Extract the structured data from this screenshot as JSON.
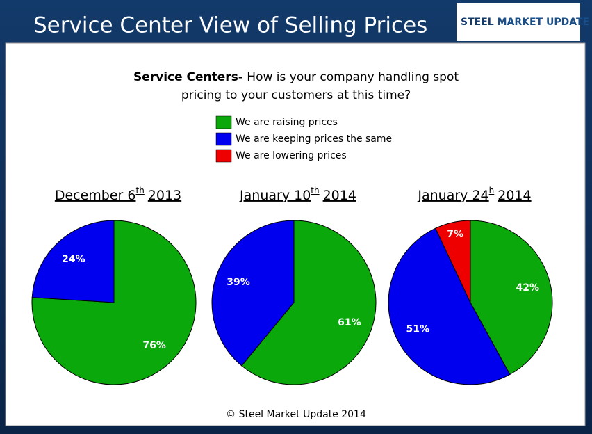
{
  "header": {
    "title": "Service Center View of Selling Prices",
    "logo_a": "STEEL",
    "logo_b": "MARKET UPDATE"
  },
  "question": {
    "lead": "Service Centers-",
    "line1": "How is your company handling spot",
    "line2": "pricing to your customers at this time?"
  },
  "legend": [
    {
      "name": "We are raising prices",
      "color": "#0aa80a"
    },
    {
      "name": "We are keeping prices the same",
      "color": "#0000ee"
    },
    {
      "name": "We are lowering prices",
      "color": "#ee0000"
    }
  ],
  "chart_data": [
    {
      "type": "pie",
      "title": {
        "main": "December 6",
        "sup": "th",
        "year": "2013"
      },
      "values": [
        76,
        24
      ],
      "value_labels": [
        "76%",
        "24%"
      ],
      "colors": [
        "#0aa80a",
        "#0000ee"
      ]
    },
    {
      "type": "pie",
      "title": {
        "main": "January 10",
        "sup": "th",
        "year": "2014"
      },
      "values": [
        61,
        39
      ],
      "value_labels": [
        "61%",
        "39%"
      ],
      "colors": [
        "#0aa80a",
        "#0000ee"
      ]
    },
    {
      "type": "pie",
      "title": {
        "main": "January 24",
        "sup": "h",
        "year": "2014"
      },
      "values": [
        42,
        51,
        7
      ],
      "value_labels": [
        "42%",
        "51%",
        "7%"
      ],
      "colors": [
        "#0aa80a",
        "#0000ee",
        "#ee0000"
      ]
    }
  ],
  "footer": "© Steel Market Update 2014"
}
